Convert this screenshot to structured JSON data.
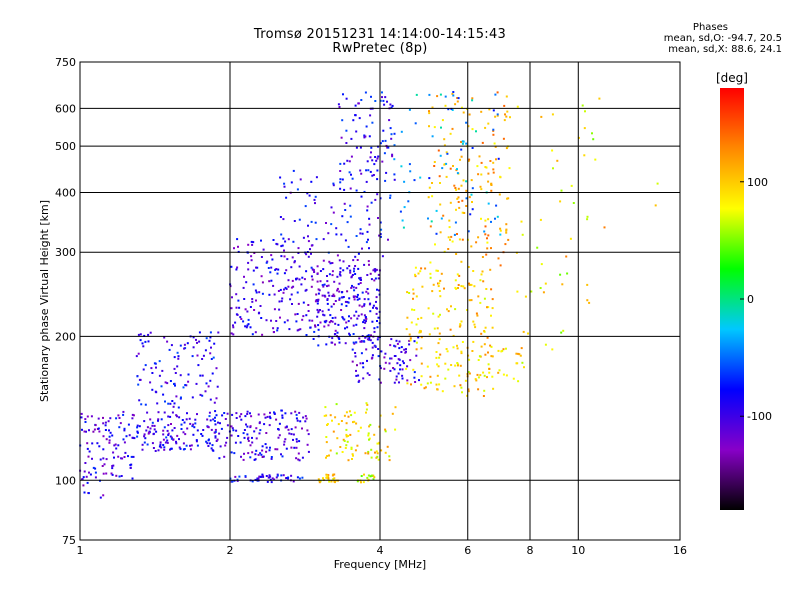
{
  "header": {
    "title_line1": "Tromsø 20151231 14:14:00-14:15:43",
    "title_line2": "RwPretec (8p)"
  },
  "phases_box": {
    "heading": "Phases",
    "line_o": "mean, sd,O: -94.7, 20.5",
    "line_x": "mean, sd,X:  88.6, 24.1"
  },
  "colorbar": {
    "unit_label": "[deg]",
    "ticks": [
      {
        "value": 100,
        "label": "100"
      },
      {
        "value": 0,
        "label": "0"
      },
      {
        "value": -100,
        "label": "-100"
      }
    ],
    "range": [
      -180,
      180
    ],
    "stops": [
      "#000000",
      "#8800c8",
      "#0000ff",
      "#00c8ff",
      "#00ff00",
      "#ffff00",
      "#ff8800",
      "#ff0000"
    ]
  },
  "chart_data": {
    "type": "scatter",
    "title": "Tromsø 20151231 14:14:00-14:15:43 RwPretec (8p)",
    "xlabel": "Frequency [MHz]",
    "ylabel": "Stationary phase Virtual Height [km]",
    "xscale": "log",
    "yscale": "log",
    "xlim": [
      1,
      16
    ],
    "ylim": [
      75,
      750
    ],
    "xticks": [
      {
        "value": 1,
        "label": "1"
      },
      {
        "value": 2,
        "label": "2"
      },
      {
        "value": 4,
        "label": "4"
      },
      {
        "value": 6,
        "label": "6"
      },
      {
        "value": 8,
        "label": "8"
      },
      {
        "value": 10,
        "label": "10"
      },
      {
        "value": 16,
        "label": "16"
      }
    ],
    "yticks": [
      {
        "value": 750,
        "label": "750"
      },
      {
        "value": 600,
        "label": "600"
      },
      {
        "value": 500,
        "label": "500"
      },
      {
        "value": 400,
        "label": "400"
      },
      {
        "value": 300,
        "label": "300"
      },
      {
        "value": 200,
        "label": "200"
      },
      {
        "value": 100,
        "label": "100"
      },
      {
        "value": 75,
        "label": "75"
      }
    ],
    "grid": true,
    "color_variable": "phase [deg]",
    "clusters": [
      {
        "f": [
          1.0,
          1.3
        ],
        "h": [
          100,
          140
        ],
        "phase": -100,
        "n": 110
      },
      {
        "f": [
          1.3,
          1.9
        ],
        "h": [
          115,
          135
        ],
        "phase": -95,
        "n": 130
      },
      {
        "f": [
          1.3,
          1.9
        ],
        "h": [
          135,
          205
        ],
        "phase": -90,
        "n": 130
      },
      {
        "f": [
          1.0,
          1.12
        ],
        "h": [
          89,
          100
        ],
        "phase": -100,
        "n": 8
      },
      {
        "f": [
          1.9,
          2.9
        ],
        "h": [
          110,
          140
        ],
        "phase": -100,
        "n": 150
      },
      {
        "f": [
          2.0,
          2.8
        ],
        "h": [
          99,
          103
        ],
        "phase": -90,
        "n": 50
      },
      {
        "f": [
          2.0,
          2.9
        ],
        "h": [
          200,
          320
        ],
        "phase": -100,
        "n": 170
      },
      {
        "f": [
          2.9,
          4.0
        ],
        "h": [
          190,
          290
        ],
        "phase": -100,
        "n": 260
      },
      {
        "f": [
          2.5,
          4.2
        ],
        "h": [
          290,
          450
        ],
        "phase": -90,
        "n": 100
      },
      {
        "f": [
          3.3,
          4.3
        ],
        "h": [
          420,
          650
        ],
        "phase": -90,
        "n": 80
      },
      {
        "f": [
          3.5,
          4.8
        ],
        "h": [
          160,
          200
        ],
        "phase": -100,
        "n": 90
      },
      {
        "f": [
          3.0,
          4.3
        ],
        "h": [
          110,
          145
        ],
        "phase": 90,
        "n": 90
      },
      {
        "f": [
          3.0,
          3.3
        ],
        "h": [
          99,
          103
        ],
        "phase": 95,
        "n": 25
      },
      {
        "f": [
          3.6,
          3.9
        ],
        "h": [
          99,
          103
        ],
        "phase": 75,
        "n": 18
      },
      {
        "f": [
          4.5,
          6.8
        ],
        "h": [
          150,
          280
        ],
        "phase": 100,
        "n": 180
      },
      {
        "f": [
          5.0,
          7.3
        ],
        "h": [
          280,
          650
        ],
        "phase": 110,
        "n": 160
      },
      {
        "f": [
          4.0,
          7.0
        ],
        "h": [
          300,
          650
        ],
        "phase": -40,
        "n": 80
      },
      {
        "f": [
          5.7,
          7.8
        ],
        "h": [
          160,
          190
        ],
        "phase": 95,
        "n": 40
      },
      {
        "f": [
          7.5,
          11
        ],
        "h": [
          180,
          620
        ],
        "phase": 80,
        "n": 40
      },
      {
        "f": [
          8.5,
          15
        ],
        "h": [
          170,
          640
        ],
        "phase": 100,
        "n": 10
      }
    ]
  }
}
